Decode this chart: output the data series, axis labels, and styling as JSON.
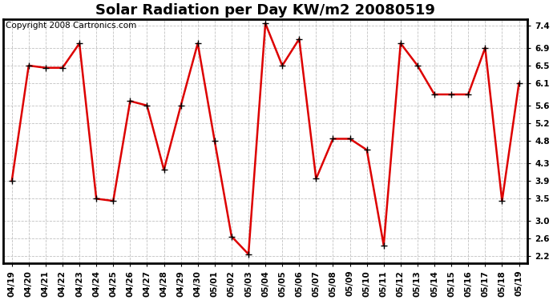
{
  "title": "Solar Radiation per Day KW/m2 20080519",
  "copyright": "Copyright 2008 Cartronics.com",
  "dates": [
    "04/19",
    "04/20",
    "04/21",
    "04/22",
    "04/23",
    "04/24",
    "04/25",
    "04/26",
    "04/27",
    "04/28",
    "04/29",
    "04/30",
    "05/01",
    "05/02",
    "05/03",
    "05/04",
    "05/05",
    "05/06",
    "05/07",
    "05/08",
    "05/09",
    "05/10",
    "05/11",
    "05/12",
    "05/13",
    "05/14",
    "05/15",
    "05/16",
    "05/17",
    "05/18",
    "05/19"
  ],
  "values": [
    3.9,
    6.5,
    6.45,
    6.45,
    7.0,
    3.5,
    3.45,
    5.7,
    5.6,
    4.15,
    5.6,
    7.0,
    4.8,
    2.65,
    2.25,
    7.45,
    6.5,
    7.1,
    3.95,
    4.85,
    4.85,
    4.6,
    2.45,
    7.0,
    6.5,
    5.85,
    5.85,
    5.85,
    6.9,
    3.45,
    6.1
  ],
  "line_color": "#dd0000",
  "marker": "+",
  "marker_size": 6,
  "bg_color": "#ffffff",
  "grid_color": "#bbbbbb",
  "ylim": [
    2.05,
    7.55
  ],
  "yticks": [
    2.2,
    2.6,
    3.0,
    3.5,
    3.9,
    4.3,
    4.8,
    5.2,
    5.6,
    6.1,
    6.5,
    6.9,
    7.4
  ],
  "title_fontsize": 13,
  "copyright_fontsize": 7.5,
  "tick_fontsize": 7.5,
  "figwidth": 6.9,
  "figheight": 3.75,
  "dpi": 100
}
